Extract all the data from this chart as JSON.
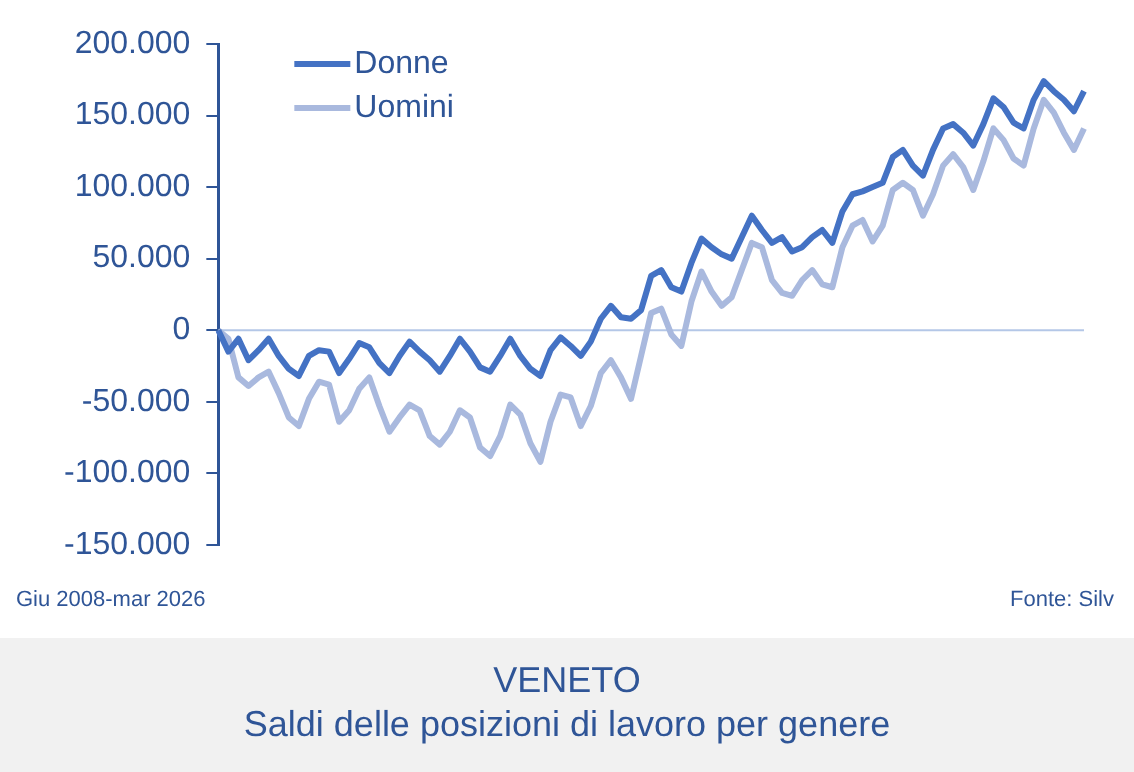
{
  "chart_data": {
    "type": "line",
    "title": "VENETO",
    "subtitle": "Saldi delle posizioni di lavoro per genere",
    "annotations": [
      "Giu 2008-mar 2026",
      "Fonte: Silv"
    ],
    "categories": [
      null,
      null,
      null,
      null,
      null,
      null,
      null,
      null,
      null,
      null,
      null,
      null,
      null,
      null,
      null,
      null,
      null,
      null,
      null,
      null,
      null,
      null,
      null,
      null,
      null,
      null,
      null,
      null,
      null,
      null,
      null,
      null,
      null,
      null,
      null,
      null,
      null,
      null,
      null,
      null,
      null,
      null,
      null,
      null,
      null,
      null,
      null,
      null,
      null,
      null,
      null,
      null,
      null,
      null,
      null,
      null,
      null,
      null,
      null,
      null,
      null,
      null,
      null,
      null,
      null,
      null,
      null,
      null,
      null,
      null,
      null,
      null,
      null,
      null,
      null,
      null,
      null,
      null,
      null,
      null,
      null,
      null,
      null,
      null,
      null,
      null,
      null
    ],
    "series": [
      {
        "name": "Donne",
        "color": "#4472c4",
        "values": [
          0,
          -15000,
          -6000,
          -21000,
          -14000,
          -6000,
          -18000,
          -27000,
          -32000,
          -18000,
          -14000,
          -15000,
          -30000,
          -20000,
          -9000,
          -12000,
          -23000,
          -30000,
          -18000,
          -8000,
          -15000,
          -21000,
          -29000,
          -18000,
          -6000,
          -15000,
          -26000,
          -29000,
          -18000,
          -6000,
          -18000,
          -27000,
          -32000,
          -14000,
          -5000,
          -11000,
          -18000,
          -8000,
          8000,
          17000,
          9000,
          8000,
          14000,
          38000,
          42000,
          30000,
          27000,
          47000,
          64000,
          58000,
          53000,
          50000,
          65000,
          80000,
          70000,
          61000,
          65000,
          55000,
          58000,
          65000,
          70000,
          61000,
          83000,
          95000,
          97000,
          100000,
          103000,
          121000,
          126000,
          115000,
          108000,
          126000,
          141000,
          144000,
          138000,
          129000,
          144000,
          162000,
          156000,
          145000,
          141000,
          161000,
          174000,
          167000,
          161000,
          153000,
          167000
        ]
      },
      {
        "name": "Uomini",
        "color": "#a9b9de",
        "values": [
          0,
          -6000,
          -33000,
          -39000,
          -33000,
          -29000,
          -44000,
          -61000,
          -67000,
          -48000,
          -36000,
          -38000,
          -64000,
          -56000,
          -41000,
          -33000,
          -53000,
          -71000,
          -61000,
          -52000,
          -56000,
          -74000,
          -80000,
          -71000,
          -56000,
          -61000,
          -82000,
          -88000,
          -74000,
          -52000,
          -59000,
          -79000,
          -92000,
          -64000,
          -45000,
          -47000,
          -67000,
          -53000,
          -30000,
          -21000,
          -33000,
          -48000,
          -18000,
          12000,
          15000,
          -3000,
          -11000,
          20000,
          41000,
          27000,
          17000,
          23000,
          42000,
          61000,
          58000,
          35000,
          26000,
          24000,
          35000,
          42000,
          32000,
          30000,
          58000,
          73000,
          77000,
          62000,
          73000,
          98000,
          103000,
          98000,
          80000,
          95000,
          115000,
          123000,
          114000,
          98000,
          118000,
          141000,
          133000,
          120000,
          115000,
          141000,
          161000,
          152000,
          138000,
          126000,
          141000
        ]
      }
    ],
    "ylim": [
      -150000,
      200000
    ],
    "yticks": [
      {
        "value": -150000,
        "label": "-150.000"
      },
      {
        "value": -100000,
        "label": "-100.000"
      },
      {
        "value": -50000,
        "label": "-50.000"
      },
      {
        "value": 0,
        "label": "0"
      },
      {
        "value": 50000,
        "label": "50.000"
      },
      {
        "value": 100000,
        "label": "100.000"
      },
      {
        "value": 150000,
        "label": "150.000"
      },
      {
        "value": 200000,
        "label": "200.000"
      }
    ],
    "ref_lines": [
      {
        "axis": "y",
        "value": 0,
        "color": "#b4c7e7"
      }
    ],
    "legend": "top left",
    "grid": false,
    "marker": "none",
    "line_style": "solid"
  }
}
